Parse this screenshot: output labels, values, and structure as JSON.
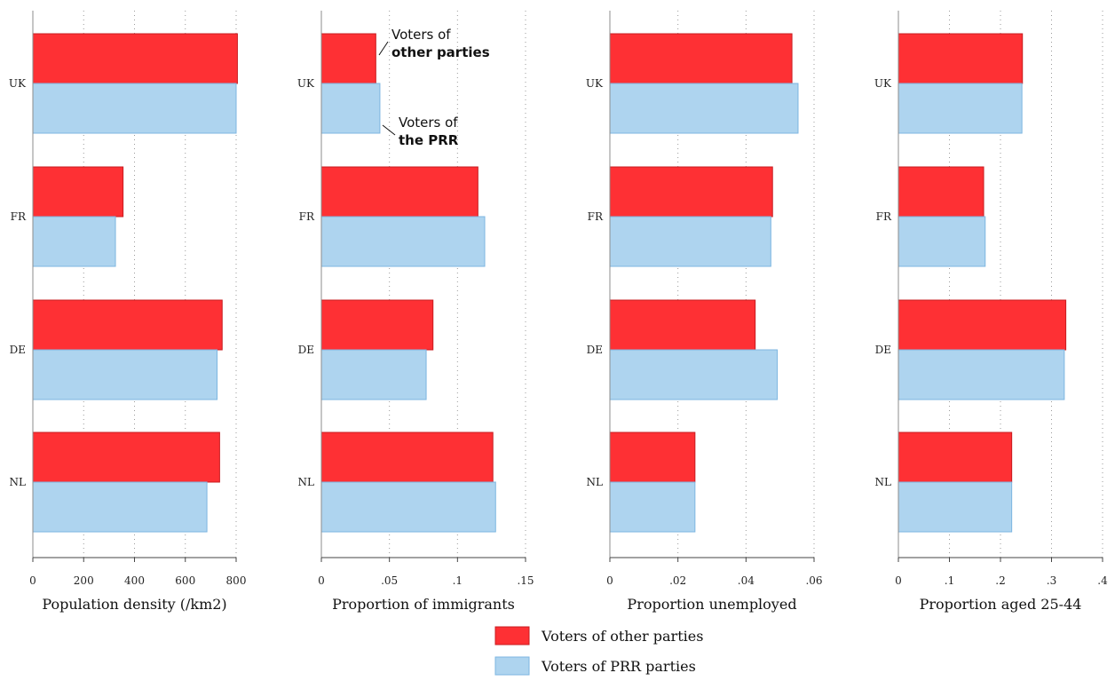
{
  "chart_data": [
    {
      "type": "bar",
      "orientation": "horizontal",
      "categories": [
        "UK",
        "FR",
        "DE",
        "NL"
      ],
      "xlabel": "Population density (/km2)",
      "xlim": [
        0,
        800
      ],
      "ticks": [
        0,
        200,
        400,
        600,
        800
      ],
      "tick_labels": [
        "0",
        "200",
        "400",
        "600",
        "800"
      ],
      "grid": "vertical dotted",
      "series": [
        {
          "name": "Voters of other parties",
          "values": [
            805,
            355,
            745,
            735
          ]
        },
        {
          "name": "Voters of PRR parties",
          "values": [
            800,
            325,
            725,
            685
          ]
        }
      ]
    },
    {
      "type": "bar",
      "orientation": "horizontal",
      "categories": [
        "UK",
        "FR",
        "DE",
        "NL"
      ],
      "xlabel": "Proportion of immigrants",
      "xlim": [
        0,
        0.15
      ],
      "ticks": [
        0,
        0.05,
        0.1,
        0.15
      ],
      "tick_labels": [
        "0",
        ".05",
        ".1",
        ".15"
      ],
      "grid": "vertical dotted",
      "annotations": {
        "other": {
          "line1": "Voters of",
          "line2": "other parties"
        },
        "prr": {
          "line1": "Voters of",
          "line2": "the PRR"
        }
      },
      "series": [
        {
          "name": "Voters of other parties",
          "values": [
            0.04,
            0.115,
            0.082,
            0.126
          ]
        },
        {
          "name": "Voters of PRR parties",
          "values": [
            0.043,
            0.12,
            0.077,
            0.128
          ]
        }
      ]
    },
    {
      "type": "bar",
      "orientation": "horizontal",
      "categories": [
        "UK",
        "FR",
        "DE",
        "NL"
      ],
      "xlabel": "Proportion unemployed",
      "xlim": [
        0,
        0.06
      ],
      "ticks": [
        0,
        0.02,
        0.04,
        0.06
      ],
      "tick_labels": [
        "0",
        ".02",
        ".04",
        ".06"
      ],
      "grid": "vertical dotted",
      "series": [
        {
          "name": "Voters of other parties",
          "values": [
            0.0535,
            0.0478,
            0.0427,
            0.025
          ]
        },
        {
          "name": "Voters of PRR parties",
          "values": [
            0.0553,
            0.0473,
            0.0492,
            0.025
          ]
        }
      ]
    },
    {
      "type": "bar",
      "orientation": "horizontal",
      "categories": [
        "UK",
        "FR",
        "DE",
        "NL"
      ],
      "xlabel": "Proportion aged 25-44",
      "xlim": [
        0,
        0.4
      ],
      "ticks": [
        0,
        0.1,
        0.2,
        0.3,
        0.4
      ],
      "tick_labels": [
        "0",
        ".1",
        ".2",
        ".3",
        ".4"
      ],
      "grid": "vertical dotted",
      "series": [
        {
          "name": "Voters of other parties",
          "values": [
            0.243,
            0.167,
            0.328,
            0.222
          ]
        },
        {
          "name": "Voters of PRR parties",
          "values": [
            0.242,
            0.17,
            0.325,
            0.222
          ]
        }
      ]
    }
  ],
  "legend": {
    "placement": "bottom-center",
    "items": [
      {
        "label": "Voters of other parties",
        "color": "#fe3034",
        "stroke": "#c81c20"
      },
      {
        "label": "Voters of PRR parties",
        "color": "#aed4ef",
        "stroke": "#7db6e0"
      }
    ]
  },
  "colors": {
    "other": "#fe3034",
    "other_stroke": "#c81c20",
    "prr": "#aed4ef",
    "prr_stroke": "#7db6e0"
  }
}
